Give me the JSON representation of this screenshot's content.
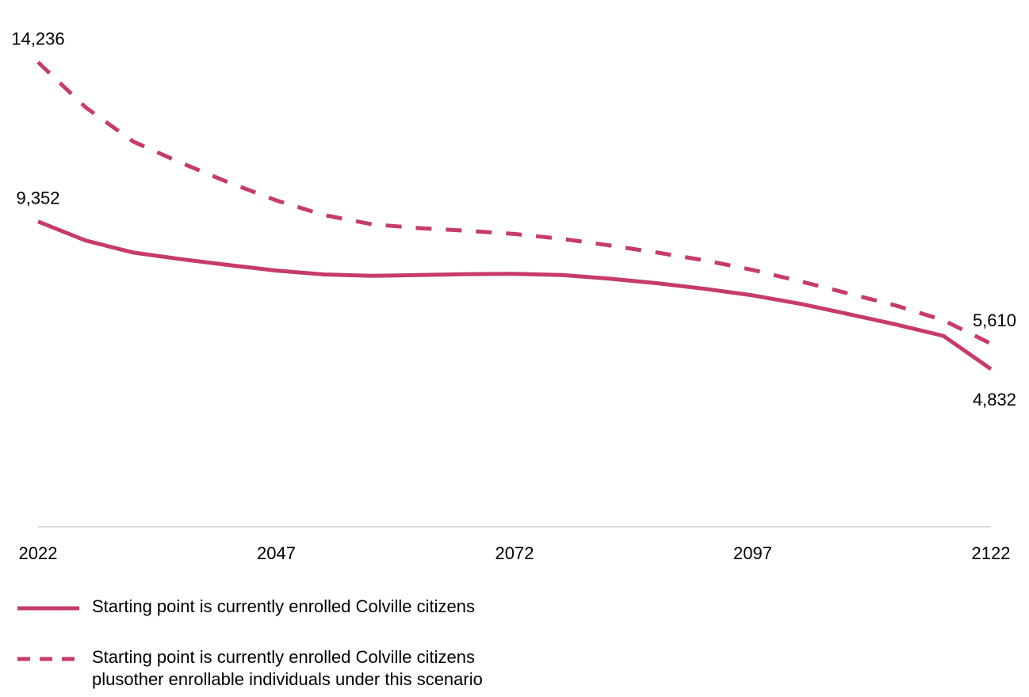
{
  "chart_data": {
    "type": "line",
    "title": "",
    "xlabel": "",
    "ylabel": "",
    "x_ticks": [
      "2022",
      "2047",
      "2072",
      "2097",
      "2122"
    ],
    "x": [
      2022,
      2027,
      2032,
      2037,
      2042,
      2047,
      2052,
      2057,
      2062,
      2067,
      2072,
      2077,
      2082,
      2087,
      2092,
      2097,
      2102,
      2107,
      2112,
      2117,
      2122
    ],
    "ylim": [
      0,
      15000
    ],
    "grid": false,
    "legend_position": "bottom-left",
    "series": [
      {
        "name": "Starting point is currently enrolled Colville citizens",
        "style": "solid",
        "color": "#C73B6B",
        "values": [
          9352,
          8770,
          8400,
          8200,
          8020,
          7850,
          7730,
          7690,
          7710,
          7740,
          7750,
          7710,
          7600,
          7460,
          7290,
          7090,
          6830,
          6520,
          6200,
          5850,
          4832
        ],
        "point_labels": [
          {
            "index": 0,
            "text": "9,352",
            "position": "above"
          },
          {
            "index": 20,
            "text": "4,832",
            "position": "below"
          }
        ]
      },
      {
        "name": "Starting point is currently enrolled Colville citizens plusother enrollable individuals under this scenario",
        "legend_lines": [
          "Starting point is currently enrolled Colville citizens",
          "plusother enrollable individuals under this scenario"
        ],
        "style": "dashed",
        "color": "#C73B6B",
        "values": [
          14236,
          12850,
          11800,
          11150,
          10550,
          10000,
          9550,
          9270,
          9150,
          9070,
          8970,
          8820,
          8620,
          8400,
          8160,
          7870,
          7520,
          7150,
          6780,
          6330,
          5610
        ],
        "point_labels": [
          {
            "index": 0,
            "text": "14,236",
            "position": "above"
          },
          {
            "index": 20,
            "text": "5,610",
            "position": "above"
          }
        ]
      }
    ]
  }
}
